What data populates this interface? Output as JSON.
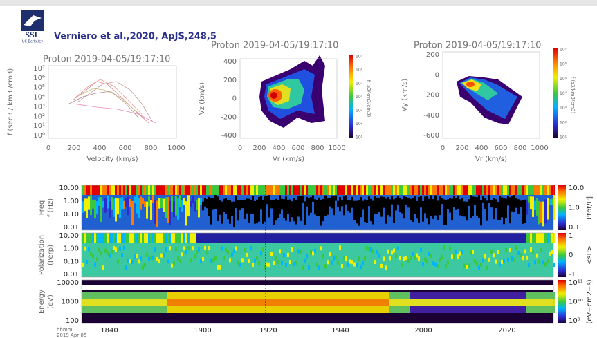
{
  "header": {
    "logo": "SSL",
    "logo_sub": "UC Berkeley",
    "citation": "Verniero et al.,2020, ApJS,248,5"
  },
  "panels": [
    {
      "title": "Proton  2019-04-05/19:17:10",
      "ylabel": "f (sec3 / km3 /cm3)",
      "xlabel": "Velocity (km/s)",
      "yticks": [
        "10⁷",
        "10⁶",
        "10⁵",
        "10⁴",
        "10³",
        "10²",
        "10¹",
        "10⁰"
      ],
      "xticks": [
        "0",
        "200",
        "400",
        "600",
        "800",
        "1000"
      ]
    },
    {
      "title": "Proton  2019-04-05/19:17:10",
      "ylabel": "Vz (km/s)",
      "xlabel": "Vr (km/s)",
      "yticks": [
        "400",
        "200",
        "0",
        "-200",
        "-400"
      ],
      "xticks": [
        "0",
        "200",
        "400",
        "600",
        "800",
        "1000"
      ],
      "colorbar_label": "f (s3/km3/cm3)",
      "colorbar_ticks": [
        "10⁷",
        "10⁶",
        "10⁵",
        "10⁴",
        "10³",
        "10²",
        "10¹"
      ]
    },
    {
      "title": "Proton  2019-04-05/19:17:10",
      "ylabel": "Vy (km/s)",
      "xlabel": "Vr (km/s)",
      "yticks": [
        "200",
        "0",
        "-200",
        "-400",
        "-600"
      ],
      "xticks": [
        "0",
        "200",
        "400",
        "600",
        "800",
        "1000"
      ],
      "colorbar_label": "f (s3/km3/cm3)",
      "colorbar_ticks": [
        "10⁷",
        "10⁶",
        "10⁵",
        "10⁴",
        "10³",
        "10²",
        "10¹"
      ]
    }
  ],
  "strips": [
    {
      "ylabel": [
        "Freq",
        "f (Hz)"
      ],
      "yticks": [
        "10.00",
        "1.00",
        "0.10",
        "0.01"
      ],
      "colorbar_ticks": [
        "10.0",
        "1.0",
        "0.1"
      ],
      "colorbar_label": "Ptot/P∥"
    },
    {
      "ylabel": [
        "Polarization",
        "(Perp)"
      ],
      "yticks": [
        "10.00",
        "1.00",
        "0.10",
        "0.01"
      ],
      "colorbar_ticks": [
        "1",
        "0",
        "-1"
      ],
      "colorbar_label": "<sP>"
    },
    {
      "ylabel": [
        "Energy",
        "(eV)"
      ],
      "yticks": [
        "10000",
        "1000",
        "100"
      ],
      "colorbar_ticks": [
        "10¹¹",
        "10¹⁰",
        "10⁹"
      ],
      "colorbar_label": "(eV−cm2−s)"
    }
  ],
  "time_axis": {
    "ticks": [
      "1840",
      "1900",
      "1920",
      "1940",
      "2000",
      "2020"
    ],
    "unit": "hhmm",
    "date": "2019 Apr 05"
  }
}
